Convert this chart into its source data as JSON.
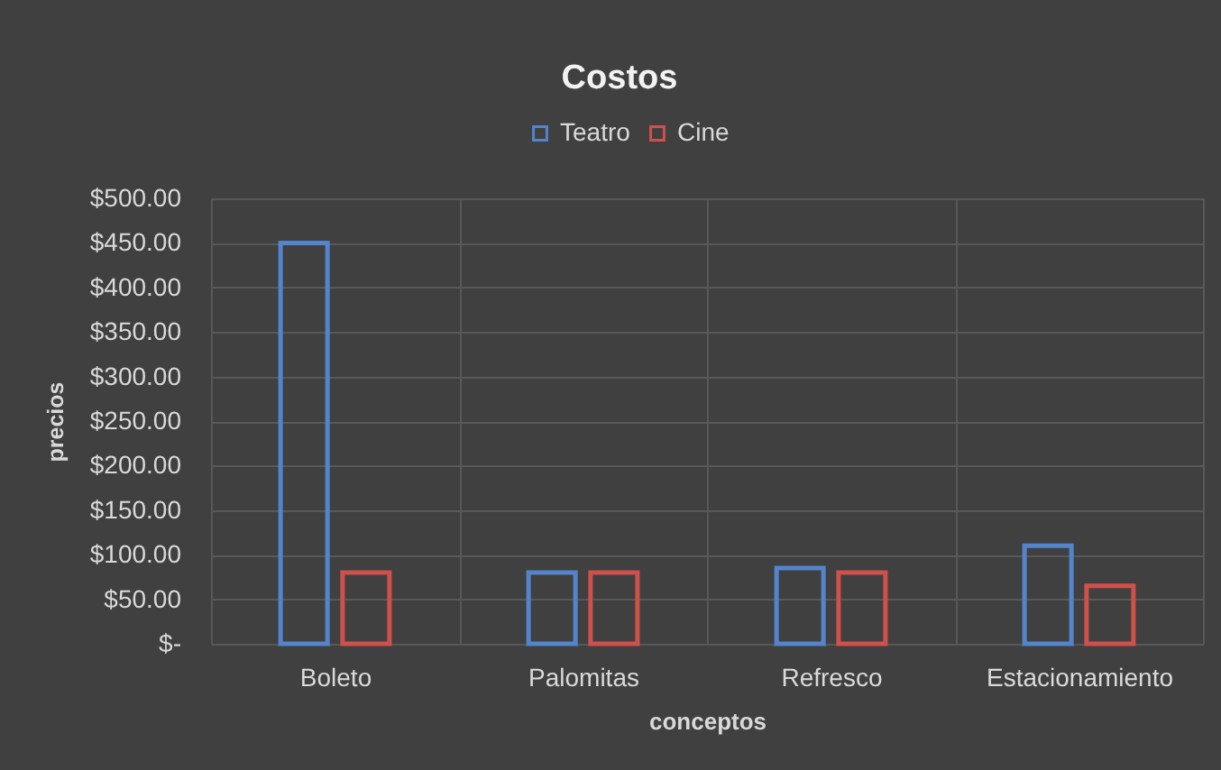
{
  "chart_data": {
    "type": "bar",
    "title": "Costos",
    "xlabel": "conceptos",
    "ylabel": "precios",
    "categories": [
      "Boleto",
      "Palomitas",
      "Refresco",
      "Estacionamiento"
    ],
    "series": [
      {
        "name": "Teatro",
        "color": "#5384cc",
        "values": [
          450,
          80,
          85,
          110
        ]
      },
      {
        "name": "Cine",
        "color": "#d0504c",
        "values": [
          80,
          80,
          80,
          65
        ]
      }
    ],
    "ylim": [
      0,
      500
    ],
    "yticks": [
      {
        "value": 0,
        "label": "$-"
      },
      {
        "value": 50,
        "label": "$50.00"
      },
      {
        "value": 100,
        "label": "$100.00"
      },
      {
        "value": 150,
        "label": "$150.00"
      },
      {
        "value": 200,
        "label": "$200.00"
      },
      {
        "value": 250,
        "label": "$250.00"
      },
      {
        "value": 300,
        "label": "$300.00"
      },
      {
        "value": 350,
        "label": "$350.00"
      },
      {
        "value": 400,
        "label": "$400.00"
      },
      {
        "value": 450,
        "label": "$450.00"
      },
      {
        "value": 500,
        "label": "$500.00"
      }
    ],
    "grid": true,
    "legend": "top"
  }
}
